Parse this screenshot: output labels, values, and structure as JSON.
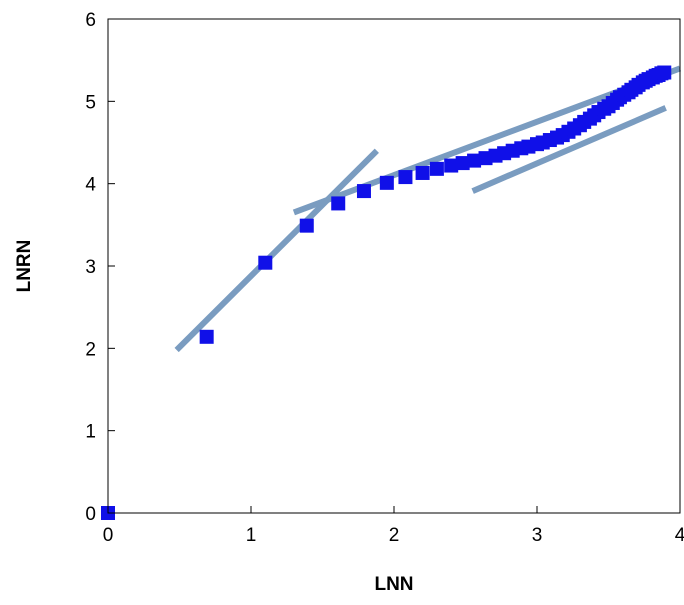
{
  "chart_data": {
    "type": "scatter",
    "title": "",
    "xlabel": "LNN",
    "ylabel": "LNRN",
    "xlim": [
      0,
      4
    ],
    "ylim": [
      0,
      6
    ],
    "x_ticks": [
      "0",
      "1",
      "2",
      "3",
      "4"
    ],
    "y_ticks": [
      "0",
      "1",
      "2",
      "3",
      "4",
      "5",
      "6"
    ],
    "grid": false,
    "legend": "none",
    "colors": {
      "points": "#1010e8",
      "fit_lines": "#7a9cc0",
      "axis": "#000000"
    },
    "series": [
      {
        "type": "scatter",
        "marker": "square",
        "points": [
          [
            0.0,
            0.0
          ],
          [
            0.69,
            2.14
          ],
          [
            1.1,
            3.04
          ],
          [
            1.39,
            3.49
          ],
          [
            1.61,
            3.76
          ],
          [
            1.79,
            3.91
          ],
          [
            1.95,
            4.01
          ],
          [
            2.08,
            4.08
          ],
          [
            2.2,
            4.13
          ],
          [
            2.3,
            4.18
          ],
          [
            2.4,
            4.22
          ],
          [
            2.48,
            4.25
          ],
          [
            2.56,
            4.28
          ],
          [
            2.64,
            4.31
          ],
          [
            2.71,
            4.34
          ],
          [
            2.77,
            4.37
          ],
          [
            2.83,
            4.4
          ],
          [
            2.89,
            4.43
          ],
          [
            2.94,
            4.45
          ],
          [
            3.0,
            4.48
          ],
          [
            3.04,
            4.5
          ],
          [
            3.09,
            4.53
          ],
          [
            3.14,
            4.56
          ],
          [
            3.18,
            4.59
          ],
          [
            3.22,
            4.63
          ],
          [
            3.26,
            4.67
          ],
          [
            3.3,
            4.71
          ],
          [
            3.33,
            4.75
          ],
          [
            3.37,
            4.79
          ],
          [
            3.4,
            4.83
          ],
          [
            3.43,
            4.87
          ],
          [
            3.47,
            4.91
          ],
          [
            3.5,
            4.94
          ],
          [
            3.53,
            4.98
          ],
          [
            3.56,
            5.02
          ],
          [
            3.58,
            5.05
          ],
          [
            3.61,
            5.08
          ],
          [
            3.64,
            5.11
          ],
          [
            3.66,
            5.14
          ],
          [
            3.69,
            5.17
          ],
          [
            3.71,
            5.2
          ],
          [
            3.74,
            5.23
          ],
          [
            3.76,
            5.25
          ],
          [
            3.78,
            5.27
          ],
          [
            3.81,
            5.29
          ],
          [
            3.83,
            5.31
          ],
          [
            3.85,
            5.32
          ],
          [
            3.87,
            5.34
          ],
          [
            3.89,
            5.35
          ]
        ]
      },
      {
        "type": "line",
        "points": [
          [
            0.48,
            1.98
          ],
          [
            1.88,
            4.4
          ]
        ]
      },
      {
        "type": "line",
        "points": [
          [
            1.3,
            3.65
          ],
          [
            4.0,
            5.4
          ]
        ]
      },
      {
        "type": "line",
        "points": [
          [
            2.55,
            3.91
          ],
          [
            3.9,
            4.92
          ]
        ]
      }
    ]
  }
}
